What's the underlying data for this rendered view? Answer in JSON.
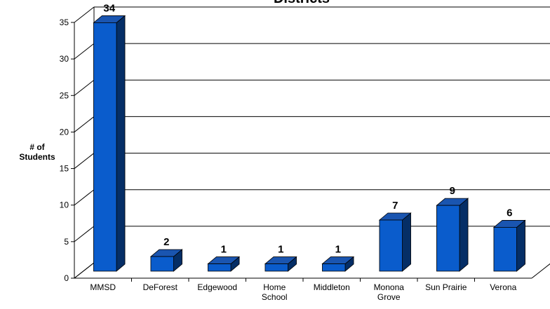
{
  "chart_data": {
    "type": "bar",
    "title": "Districts",
    "ylabel_lines": [
      "# of",
      "Students"
    ],
    "xlabel": "",
    "categories": [
      [
        "MMSD"
      ],
      [
        "DeForest"
      ],
      [
        "Edgewood"
      ],
      [
        "Home",
        "School"
      ],
      [
        "Middleton"
      ],
      [
        "Monona",
        "Grove"
      ],
      [
        "Sun Prairie"
      ],
      [
        "Verona"
      ]
    ],
    "values": [
      34,
      2,
      1,
      1,
      1,
      7,
      9,
      6
    ],
    "data_labels": [
      "34",
      "2",
      "1",
      "1",
      "1",
      "7",
      "9",
      "6"
    ],
    "ylim": [
      0,
      35
    ],
    "yticks": [
      0,
      5,
      10,
      15,
      20,
      25,
      30,
      35
    ],
    "grid": true,
    "legend": "none",
    "colors": {
      "bar_front": "#0a5ccc",
      "bar_side": "#052e66",
      "bar_top": "#1a55b0",
      "grid": "#000000"
    }
  }
}
